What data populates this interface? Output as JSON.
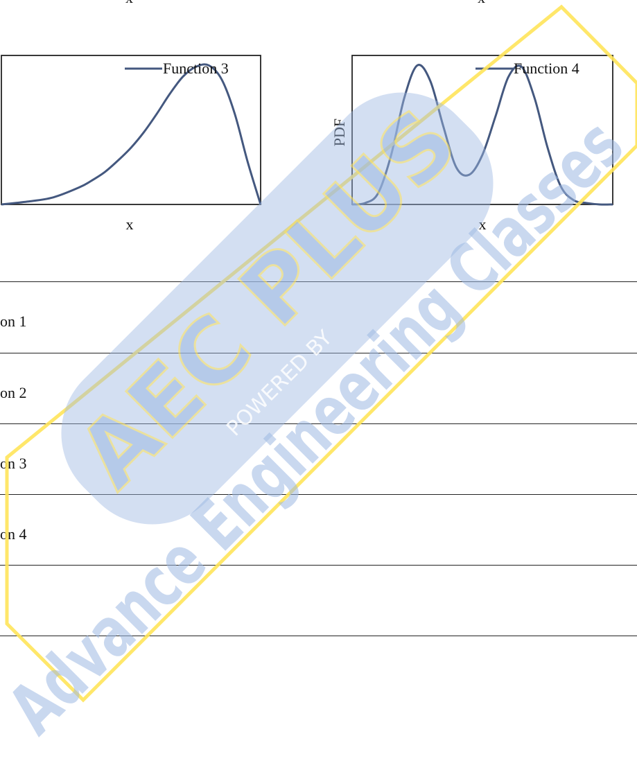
{
  "top_axis_labels": {
    "left": "x",
    "right": "x"
  },
  "colors": {
    "line": "#44587f",
    "frame": "#222222",
    "wm_blue": "#9db9e3",
    "wm_yellow": "#ffe45a"
  },
  "chart_data": [
    {
      "type": "line",
      "title": "",
      "xlabel": "x",
      "ylabel": "",
      "legend": "top-right",
      "series": [
        {
          "name": "Function 3",
          "x": [
            0.0,
            0.1,
            0.2,
            0.3,
            0.35,
            0.4,
            0.45,
            0.5,
            0.55,
            0.6,
            0.65,
            0.7,
            0.75,
            0.8,
            0.85,
            0.9,
            0.95,
            1.0
          ],
          "y": [
            0.0,
            0.02,
            0.05,
            0.12,
            0.17,
            0.23,
            0.31,
            0.4,
            0.51,
            0.64,
            0.78,
            0.9,
            0.97,
            0.98,
            0.88,
            0.64,
            0.3,
            0.0
          ]
        }
      ],
      "xlim": [
        0,
        1
      ],
      "ylim": [
        0,
        1.05
      ]
    },
    {
      "type": "line",
      "title": "",
      "xlabel": "x",
      "ylabel": "PDF",
      "legend": "top-right",
      "series": [
        {
          "name": "Function 4",
          "x": [
            0.0,
            0.05,
            0.1,
            0.15,
            0.2,
            0.25,
            0.3,
            0.35,
            0.4,
            0.45,
            0.5,
            0.55,
            0.6,
            0.65,
            0.7,
            0.75,
            0.8,
            0.85,
            0.9,
            0.95,
            1.0
          ],
          "y": [
            0.0,
            0.01,
            0.08,
            0.35,
            0.75,
            0.98,
            0.87,
            0.55,
            0.26,
            0.21,
            0.35,
            0.62,
            0.9,
            0.97,
            0.75,
            0.4,
            0.13,
            0.03,
            0.01,
            0.0,
            0.0
          ]
        }
      ],
      "xlim": [
        0,
        1
      ],
      "ylim": [
        0,
        1.05
      ]
    }
  ],
  "options": [
    "on 1",
    "on 2",
    "on 3",
    "on 4"
  ],
  "watermark": {
    "main": "AEC PLUS",
    "powered": "POWERED BY",
    "sub": "Advance Engineering Classes"
  }
}
